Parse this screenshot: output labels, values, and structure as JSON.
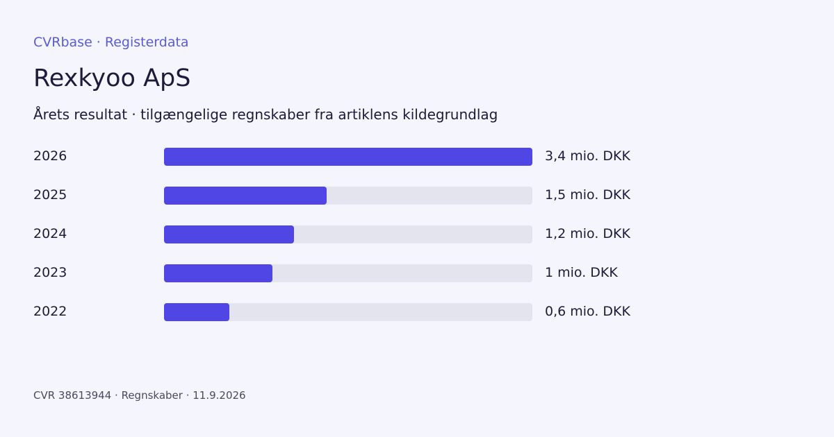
{
  "header": {
    "brand": "CVRbase · Registerdata",
    "company": "Rexkyoo ApS",
    "subtitle": "Årets resultat · tilgængelige regnskaber fra artiklens kildegrundlag"
  },
  "footer": {
    "text": "CVR 38613944 · Regnskaber · 11.9.2026"
  },
  "colors": {
    "bar": "#4f46e5",
    "track": "#e4e4ef",
    "accent": "#5b5bd6",
    "background": "#f5f5fd"
  },
  "chart_data": {
    "type": "bar",
    "orientation": "horizontal",
    "categories": [
      "2026",
      "2025",
      "2024",
      "2023",
      "2022"
    ],
    "values": [
      3.4,
      1.5,
      1.2,
      1.0,
      0.6
    ],
    "value_labels": [
      "3,4 mio. DKK",
      "1,5 mio. DKK",
      "1,2 mio. DKK",
      "1 mio. DKK",
      "0,6 mio. DKK"
    ],
    "xlim": [
      0,
      3.4
    ],
    "grid": false,
    "legend": "none"
  }
}
